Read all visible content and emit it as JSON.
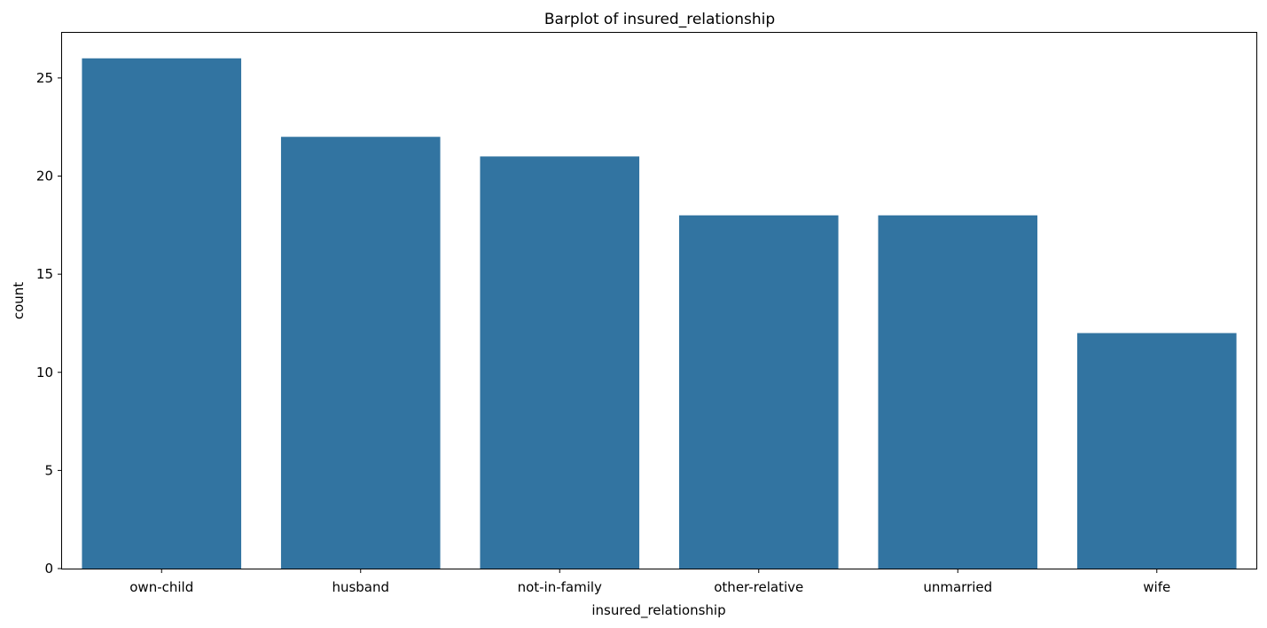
{
  "chart_data": {
    "type": "bar",
    "title": "Barplot of insured_relationship",
    "xlabel": "insured_relationship",
    "ylabel": "count",
    "categories": [
      "own-child",
      "husband",
      "not-in-family",
      "other-relative",
      "unmarried",
      "wife"
    ],
    "values": [
      26,
      22,
      21,
      18,
      18,
      12
    ],
    "ylim": [
      0,
      27.3
    ],
    "yticks": [
      0,
      5,
      10,
      15,
      20,
      25
    ],
    "grid": false,
    "bar_color": "#3274a1"
  }
}
